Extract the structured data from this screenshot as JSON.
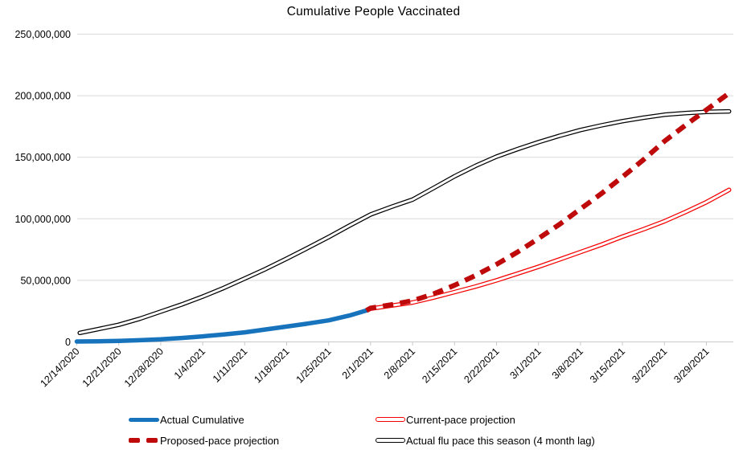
{
  "title": "Cumulative People Vaccinated",
  "colors": {
    "actual_blue": "#1673BC",
    "current_pace_red": "#F40000",
    "proposed_pace_darkred": "#BE0A0A",
    "flu_black": "#000000",
    "gridline": "#D9D9D9",
    "axis": "#C9C9C9",
    "text": "#000000"
  },
  "chart_data": {
    "type": "line",
    "title": "Cumulative People Vaccinated",
    "xlabel": "",
    "ylabel": "",
    "ylim": [
      0,
      250000000
    ],
    "grid": "horizontal",
    "legend_position": "bottom",
    "y_ticks": [
      0,
      50000000,
      100000000,
      150000000,
      200000000,
      250000000
    ],
    "y_tick_labels": [
      "0",
      "50,000,000",
      "100,000,000",
      "150,000,000",
      "200,000,000",
      "250,000,000"
    ],
    "x_unit": "weeks since 12/14/2020",
    "x_tick_weeks": [
      0,
      1,
      2,
      3,
      4,
      5,
      6,
      7,
      8,
      9,
      10,
      11,
      12,
      13,
      14,
      15
    ],
    "x_tick_labels": [
      "12/14/2020",
      "12/21/2020",
      "12/28/2020",
      "1/4/2021",
      "1/11/2021",
      "1/18/2021",
      "1/25/2021",
      "2/1/2021",
      "2/8/2021",
      "2/15/2021",
      "2/22/2021",
      "3/1/2021",
      "3/8/2021",
      "3/15/2021",
      "3/22/2021",
      "3/29/2021"
    ],
    "series": [
      {
        "name": "Actual flu pace this season (4 month lag)",
        "style": "outlined",
        "color": "#000000",
        "points": [
          [
            0.07,
            7300000
          ],
          [
            0.5,
            10300000
          ],
          [
            1,
            13900000
          ],
          [
            1.5,
            18800000
          ],
          [
            2,
            24600000
          ],
          [
            2.5,
            30400000
          ],
          [
            3,
            36800000
          ],
          [
            3.5,
            43800000
          ],
          [
            4,
            51500000
          ],
          [
            4.5,
            59300000
          ],
          [
            5,
            67600000
          ],
          [
            5.5,
            76300000
          ],
          [
            6,
            85200000
          ],
          [
            6.5,
            94500000
          ],
          [
            7,
            103500000
          ],
          [
            7.5,
            109800000
          ],
          [
            8,
            115600000
          ],
          [
            8.5,
            125000000
          ],
          [
            9,
            134500000
          ],
          [
            9.5,
            143000000
          ],
          [
            10,
            150500000
          ],
          [
            10.5,
            156600000
          ],
          [
            11,
            162300000
          ],
          [
            11.5,
            167400000
          ],
          [
            12,
            172100000
          ],
          [
            12.5,
            175900000
          ],
          [
            13,
            179300000
          ],
          [
            13.5,
            182100000
          ],
          [
            14,
            184500000
          ],
          [
            14.5,
            185900000
          ],
          [
            15,
            186900000
          ],
          [
            15.54,
            187300000
          ]
        ]
      },
      {
        "name": "Current-pace projection",
        "style": "outlined",
        "color": "#F40000",
        "points": [
          [
            6.9,
            25500000
          ],
          [
            7,
            27000000
          ],
          [
            7.5,
            29500000
          ],
          [
            8,
            32000000
          ],
          [
            8.5,
            36000000
          ],
          [
            9,
            40500000
          ],
          [
            9.5,
            45000000
          ],
          [
            10,
            50000000
          ],
          [
            10.5,
            55500000
          ],
          [
            11,
            61000000
          ],
          [
            11.5,
            67000000
          ],
          [
            12,
            73000000
          ],
          [
            12.5,
            79000000
          ],
          [
            13,
            85500000
          ],
          [
            13.5,
            91500000
          ],
          [
            14,
            98000000
          ],
          [
            14.5,
            105500000
          ],
          [
            15,
            113500000
          ],
          [
            15.54,
            123500000
          ]
        ]
      },
      {
        "name": "Actual Cumulative",
        "style": "solid-thick",
        "color": "#1673BC",
        "points": [
          [
            0,
            300000
          ],
          [
            0.5,
            550000
          ],
          [
            1,
            850000
          ],
          [
            1.5,
            1400000
          ],
          [
            2,
            2100000
          ],
          [
            2.5,
            3200000
          ],
          [
            3,
            4500000
          ],
          [
            3.5,
            6100000
          ],
          [
            4,
            7800000
          ],
          [
            4.5,
            10100000
          ],
          [
            5,
            12500000
          ],
          [
            5.5,
            14900000
          ],
          [
            6,
            17500000
          ],
          [
            6.5,
            21500000
          ],
          [
            6.9,
            25500000
          ]
        ]
      },
      {
        "name": "Proposed-pace projection",
        "style": "dashed",
        "color": "#BE0A0A",
        "points": [
          [
            6.9,
            25500000
          ],
          [
            7,
            27500000
          ],
          [
            7.5,
            30200000
          ],
          [
            8,
            33500000
          ],
          [
            8.5,
            39000000
          ],
          [
            9,
            46000000
          ],
          [
            9.5,
            54000000
          ],
          [
            10,
            63000000
          ],
          [
            10.5,
            73000000
          ],
          [
            11,
            84000000
          ],
          [
            11.5,
            95500000
          ],
          [
            12,
            108000000
          ],
          [
            12.5,
            120500000
          ],
          [
            13,
            134000000
          ],
          [
            13.5,
            148000000
          ],
          [
            14,
            163000000
          ],
          [
            14.5,
            176000000
          ],
          [
            15,
            188500000
          ],
          [
            15.54,
            202000000
          ]
        ]
      }
    ]
  },
  "legend": {
    "items": [
      {
        "label": "Actual Cumulative",
        "icon": "thick-blue-line-icon",
        "color": "#1673BC"
      },
      {
        "label": "Current-pace projection",
        "icon": "outlined-red-line-icon",
        "color": "#F40000"
      },
      {
        "label": "Proposed-pace projection",
        "icon": "dashed-darkred-line-icon",
        "color": "#BE0A0A"
      },
      {
        "label": "Actual flu pace this season (4 month lag)",
        "icon": "outlined-black-line-icon",
        "color": "#000000"
      }
    ]
  }
}
